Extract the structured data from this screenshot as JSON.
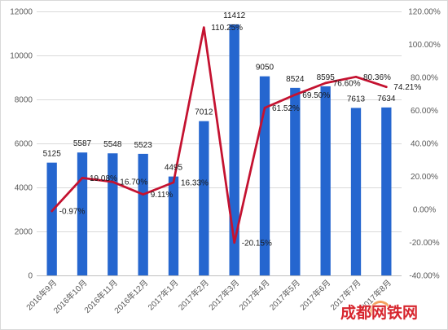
{
  "chart_data": {
    "type": "bar",
    "categories": [
      "2016年9月",
      "2016年10月",
      "2016年11月",
      "2016年12月",
      "2017年1月",
      "2017年2月",
      "2017年3月",
      "2017年4月",
      "2017年5月",
      "2017年6月",
      "2017年7月",
      "2017年8月"
    ],
    "series": [
      {
        "type": "bar",
        "y_axis": "left",
        "color": "#2566cf",
        "values": [
          5125,
          5587,
          5548,
          5523,
          4495,
          7012,
          11412,
          9050,
          8524,
          8595,
          7613,
          7634
        ]
      },
      {
        "type": "line",
        "y_axis": "right",
        "color": "#c41230",
        "values": [
          -0.97,
          19.08,
          16.7,
          9.11,
          16.33,
          110.25,
          -20.15,
          61.52,
          69.5,
          76.6,
          80.36,
          74.21
        ],
        "labels": [
          "-0.97%",
          "19.08%",
          "16.70%",
          "9.11%",
          "16.33%",
          "110.25%",
          "-20.15%",
          "61.52%",
          "69.50%",
          "76.60%",
          "80.36%",
          "74.21%"
        ]
      }
    ],
    "y_left": {
      "ylim": [
        0,
        12000
      ],
      "ticks": [
        "0",
        "2000",
        "4000",
        "6000",
        "8000",
        "10000",
        "12000"
      ]
    },
    "y_right": {
      "ylim": [
        -40,
        120
      ],
      "ticks": [
        "-40.00%",
        "-20.00%",
        "0.00%",
        "20.00%",
        "40.00%",
        "60.00%",
        "80.00%",
        "100.00%",
        "120.00%"
      ]
    },
    "grid": true,
    "legend": "none"
  },
  "watermark": {
    "text": "成都网铁网",
    "color": "#d7262e"
  }
}
